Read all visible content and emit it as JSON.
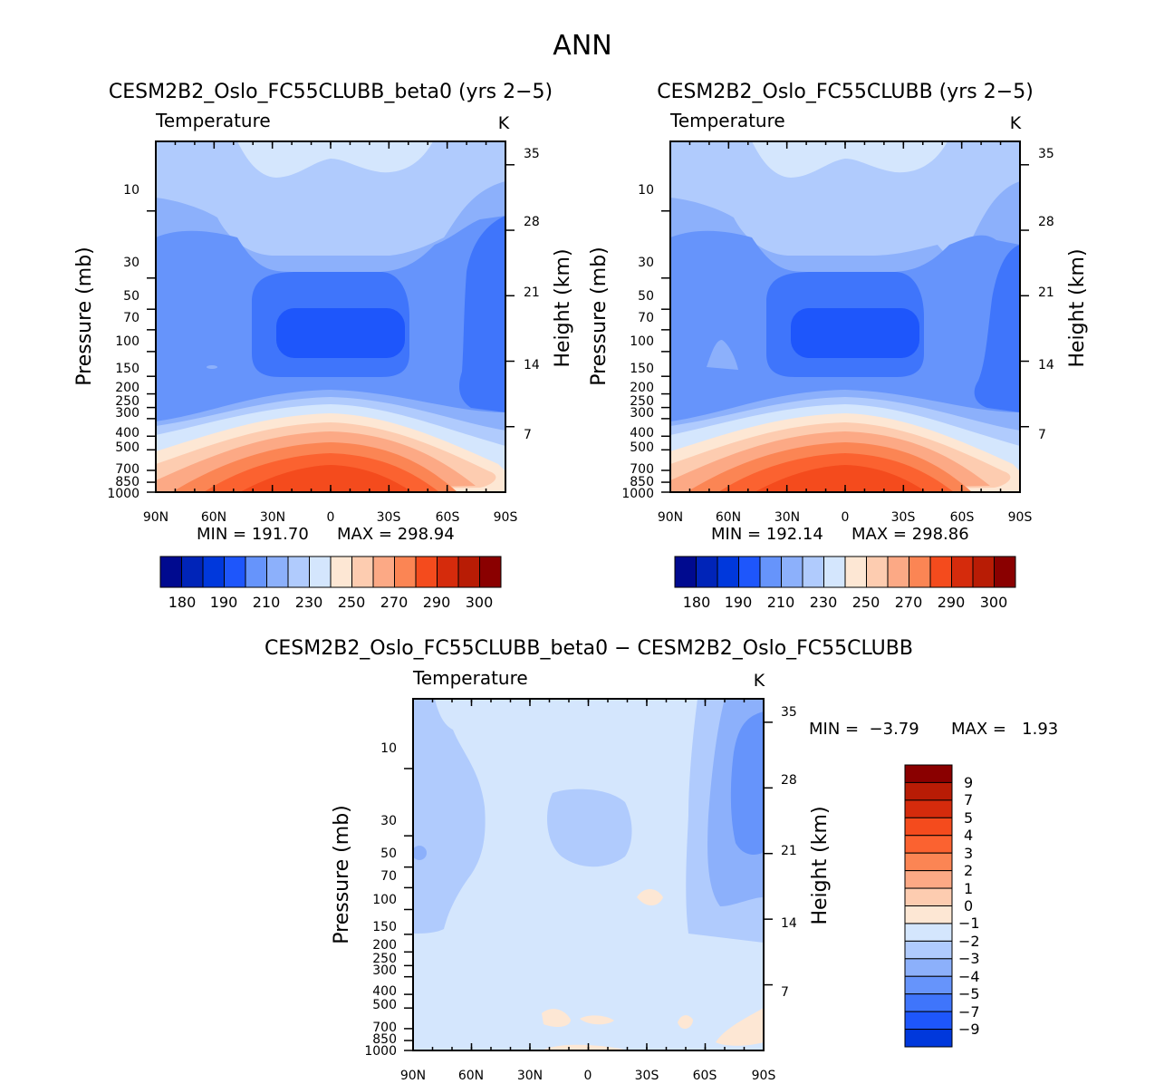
{
  "page": {
    "title": "ANN"
  },
  "chart_data": [
    {
      "type": "heatmap",
      "title": "CESM2B2_Oslo_FC55CLUBB_beta0 (yrs 2−5)",
      "variable": "Temperature",
      "units": "K",
      "ylabel": "Pressure (mb)",
      "y2label": "Height (km)",
      "xticks": [
        "90N",
        "60N",
        "30N",
        "0",
        "30S",
        "60S",
        "90S"
      ],
      "yticks": [
        "10",
        "30",
        "50",
        "70",
        "100",
        "150",
        "200",
        "250",
        "300",
        "400",
        "500",
        "700",
        "850",
        "1000"
      ],
      "y2ticks": [
        "35",
        "28",
        "21",
        "14",
        "7"
      ],
      "min_label": "MIN = 191.70",
      "max_label": "MAX = 298.94",
      "min": 191.7,
      "max": 298.94,
      "colorbar_labels": [
        "180",
        "190",
        "210",
        "230",
        "250",
        "270",
        "290",
        "300"
      ],
      "levels": [
        180,
        185,
        190,
        200,
        210,
        220,
        230,
        240,
        250,
        260,
        270,
        280,
        290,
        295,
        300
      ]
    },
    {
      "type": "heatmap",
      "title": "CESM2B2_Oslo_FC55CLUBB (yrs 2−5)",
      "variable": "Temperature",
      "units": "K",
      "ylabel": "Pressure (mb)",
      "y2label": "Height (km)",
      "xticks": [
        "90N",
        "60N",
        "30N",
        "0",
        "30S",
        "60S",
        "90S"
      ],
      "yticks": [
        "10",
        "30",
        "50",
        "70",
        "100",
        "150",
        "200",
        "250",
        "300",
        "400",
        "500",
        "700",
        "850",
        "1000"
      ],
      "y2ticks": [
        "35",
        "28",
        "21",
        "14",
        "7"
      ],
      "min_label": "MIN = 192.14",
      "max_label": "MAX = 298.86",
      "min": 192.14,
      "max": 298.86,
      "colorbar_labels": [
        "180",
        "190",
        "210",
        "230",
        "250",
        "270",
        "290",
        "300"
      ],
      "levels": [
        180,
        185,
        190,
        200,
        210,
        220,
        230,
        240,
        250,
        260,
        270,
        280,
        290,
        295,
        300
      ]
    },
    {
      "type": "heatmap",
      "title": "CESM2B2_Oslo_FC55CLUBB_beta0 − CESM2B2_Oslo_FC55CLUBB",
      "variable": "Temperature",
      "units": "K",
      "ylabel": "Pressure (mb)",
      "y2label": "Height (km)",
      "xticks": [
        "90N",
        "60N",
        "30N",
        "0",
        "30S",
        "60S",
        "90S"
      ],
      "yticks": [
        "10",
        "30",
        "50",
        "70",
        "100",
        "150",
        "200",
        "250",
        "300",
        "400",
        "500",
        "700",
        "850",
        "1000"
      ],
      "y2ticks": [
        "35",
        "28",
        "21",
        "14",
        "7"
      ],
      "min_label": "MIN =  −3.79",
      "max_label": "MAX =   1.93",
      "min": -3.79,
      "max": 1.93,
      "colorbar_labels": [
        "9",
        "7",
        "5",
        "4",
        "3",
        "2",
        "1",
        "0",
        "−1",
        "−2",
        "−3",
        "−4",
        "−5",
        "−7",
        "−9"
      ]
    }
  ]
}
